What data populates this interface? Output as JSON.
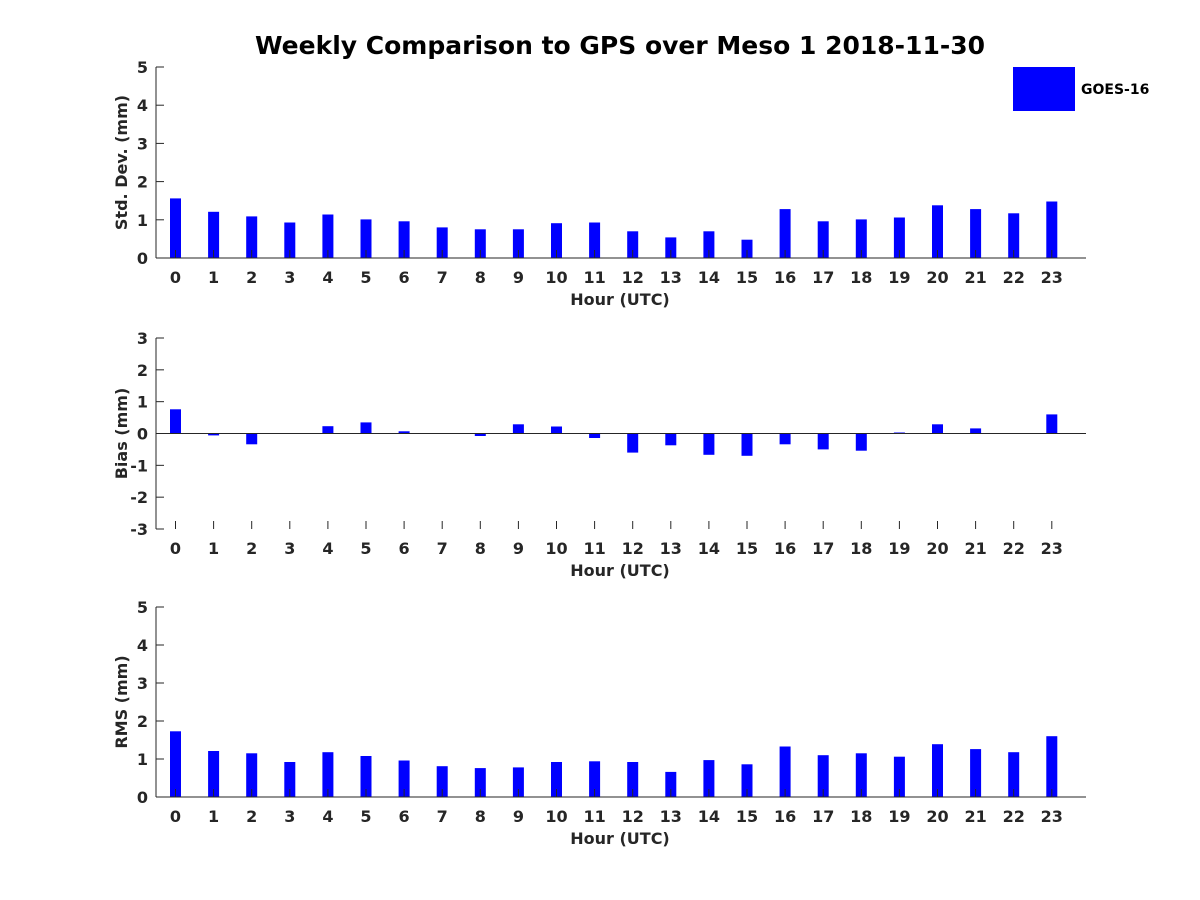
{
  "chart_data": {
    "type": "bar",
    "title": "Weekly Comparison to GPS over Meso 1 2018-11-30",
    "legend": {
      "label": "GOES-16",
      "color": "#0000ff",
      "placement": "top-right"
    },
    "categories": [
      "0",
      "1",
      "2",
      "3",
      "4",
      "5",
      "6",
      "7",
      "8",
      "9",
      "10",
      "11",
      "12",
      "13",
      "14",
      "15",
      "16",
      "17",
      "18",
      "19",
      "20",
      "21",
      "22",
      "23"
    ],
    "panels": [
      {
        "id": "std",
        "ylabel": "Std. Dev. (mm)",
        "xlabel": "Hour (UTC)",
        "ylim": [
          0,
          5
        ],
        "yticks": [
          "0",
          "1",
          "2",
          "3",
          "4",
          "5"
        ],
        "values": [
          1.56,
          1.21,
          1.09,
          0.93,
          1.14,
          1.01,
          0.96,
          0.8,
          0.75,
          0.75,
          0.91,
          0.93,
          0.7,
          0.54,
          0.7,
          0.48,
          1.28,
          0.96,
          1.01,
          1.06,
          1.38,
          1.28,
          1.17,
          1.48
        ]
      },
      {
        "id": "bias",
        "ylabel": "Bias (mm)",
        "xlabel": "Hour (UTC)",
        "ylim": [
          -3,
          3
        ],
        "yticks": [
          "-3",
          "-2",
          "-1",
          "0",
          "1",
          "2",
          "3"
        ],
        "values": [
          0.76,
          -0.06,
          -0.34,
          0.0,
          0.23,
          0.35,
          0.07,
          0.0,
          -0.08,
          0.29,
          0.22,
          -0.14,
          -0.6,
          -0.37,
          -0.67,
          -0.7,
          -0.34,
          -0.5,
          -0.54,
          0.03,
          0.29,
          0.16,
          0.0,
          0.6
        ]
      },
      {
        "id": "rms",
        "ylabel": "RMS (mm)",
        "xlabel": "Hour (UTC)",
        "ylim": [
          0,
          5
        ],
        "yticks": [
          "0",
          "1",
          "2",
          "3",
          "4",
          "5"
        ],
        "values": [
          1.73,
          1.21,
          1.15,
          0.92,
          1.18,
          1.08,
          0.96,
          0.81,
          0.76,
          0.78,
          0.92,
          0.94,
          0.92,
          0.66,
          0.97,
          0.86,
          1.33,
          1.1,
          1.15,
          1.06,
          1.39,
          1.26,
          1.18,
          1.6
        ]
      }
    ]
  }
}
